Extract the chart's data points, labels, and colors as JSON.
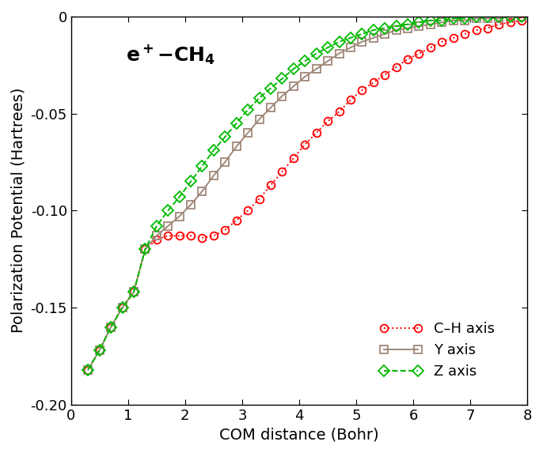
{
  "xlabel": "COM distance (Bohr)",
  "ylabel": "Polarization Potential (Hartrees)",
  "xlim": [
    0,
    8
  ],
  "ylim": [
    -0.2,
    0.0
  ],
  "yticks": [
    0.0,
    -0.05,
    -0.1,
    -0.15,
    -0.2
  ],
  "xticks": [
    0,
    1,
    2,
    3,
    4,
    5,
    6,
    7,
    8
  ],
  "ch_axis_x": [
    0.3,
    0.5,
    0.7,
    0.9,
    1.1,
    1.3,
    1.5,
    1.7,
    1.9,
    2.1,
    2.3,
    2.5,
    2.7,
    2.9,
    3.1,
    3.3,
    3.5,
    3.7,
    3.9,
    4.1,
    4.3,
    4.5,
    4.7,
    4.9,
    5.1,
    5.3,
    5.5,
    5.7,
    5.9,
    6.1,
    6.3,
    6.5,
    6.7,
    6.9,
    7.1,
    7.3,
    7.5,
    7.7,
    7.9
  ],
  "ch_axis_y": [
    -0.182,
    -0.172,
    -0.16,
    -0.15,
    -0.142,
    -0.12,
    -0.115,
    -0.113,
    -0.113,
    -0.113,
    -0.114,
    -0.113,
    -0.11,
    -0.105,
    -0.1,
    -0.094,
    -0.087,
    -0.08,
    -0.073,
    -0.066,
    -0.06,
    -0.054,
    -0.049,
    -0.043,
    -0.038,
    -0.034,
    -0.03,
    -0.026,
    -0.022,
    -0.019,
    -0.016,
    -0.013,
    -0.011,
    -0.009,
    -0.007,
    -0.006,
    -0.004,
    -0.003,
    -0.002
  ],
  "y_axis_x": [
    0.3,
    0.5,
    0.7,
    0.9,
    1.1,
    1.3,
    1.5,
    1.7,
    1.9,
    2.1,
    2.3,
    2.5,
    2.7,
    2.9,
    3.1,
    3.3,
    3.5,
    3.7,
    3.9,
    4.1,
    4.3,
    4.5,
    4.7,
    4.9,
    5.1,
    5.3,
    5.5,
    5.7,
    5.9,
    6.1,
    6.3,
    6.5,
    6.7,
    6.9,
    7.1,
    7.3,
    7.5,
    7.7,
    7.9
  ],
  "y_axis_y": [
    -0.182,
    -0.172,
    -0.16,
    -0.15,
    -0.142,
    -0.12,
    -0.113,
    -0.108,
    -0.103,
    -0.097,
    -0.09,
    -0.082,
    -0.075,
    -0.067,
    -0.06,
    -0.053,
    -0.047,
    -0.041,
    -0.036,
    -0.031,
    -0.027,
    -0.023,
    -0.019,
    -0.016,
    -0.013,
    -0.011,
    -0.009,
    -0.007,
    -0.006,
    -0.005,
    -0.004,
    -0.003,
    -0.002,
    -0.002,
    -0.001,
    -0.001,
    -0.001,
    0.0,
    0.0
  ],
  "z_axis_x": [
    0.3,
    0.5,
    0.7,
    0.9,
    1.1,
    1.3,
    1.5,
    1.7,
    1.9,
    2.1,
    2.3,
    2.5,
    2.7,
    2.9,
    3.1,
    3.3,
    3.5,
    3.7,
    3.9,
    4.1,
    4.3,
    4.5,
    4.7,
    4.9,
    5.1,
    5.3,
    5.5,
    5.7,
    5.9,
    6.1,
    6.3,
    6.5,
    6.7,
    6.9,
    7.1,
    7.3,
    7.5,
    7.7,
    7.9
  ],
  "z_axis_y": [
    -0.182,
    -0.172,
    -0.16,
    -0.15,
    -0.142,
    -0.12,
    -0.108,
    -0.1,
    -0.093,
    -0.085,
    -0.077,
    -0.069,
    -0.062,
    -0.055,
    -0.048,
    -0.042,
    -0.037,
    -0.032,
    -0.027,
    -0.023,
    -0.019,
    -0.016,
    -0.013,
    -0.011,
    -0.009,
    -0.007,
    -0.006,
    -0.005,
    -0.004,
    -0.003,
    -0.002,
    -0.002,
    -0.001,
    -0.001,
    0.0,
    0.0,
    0.0,
    0.0,
    0.0
  ],
  "ch_color": "#ff0000",
  "y_color": "#a08878",
  "z_color": "#00bb00",
  "legend_labels": [
    "C–H axis",
    "Y axis",
    "Z axis"
  ],
  "background_color": "#ffffff",
  "tick_fontsize": 13,
  "label_fontsize": 14,
  "legend_fontsize": 13,
  "annotation_fontsize": 18,
  "marker_size": 7,
  "linewidth": 1.4
}
